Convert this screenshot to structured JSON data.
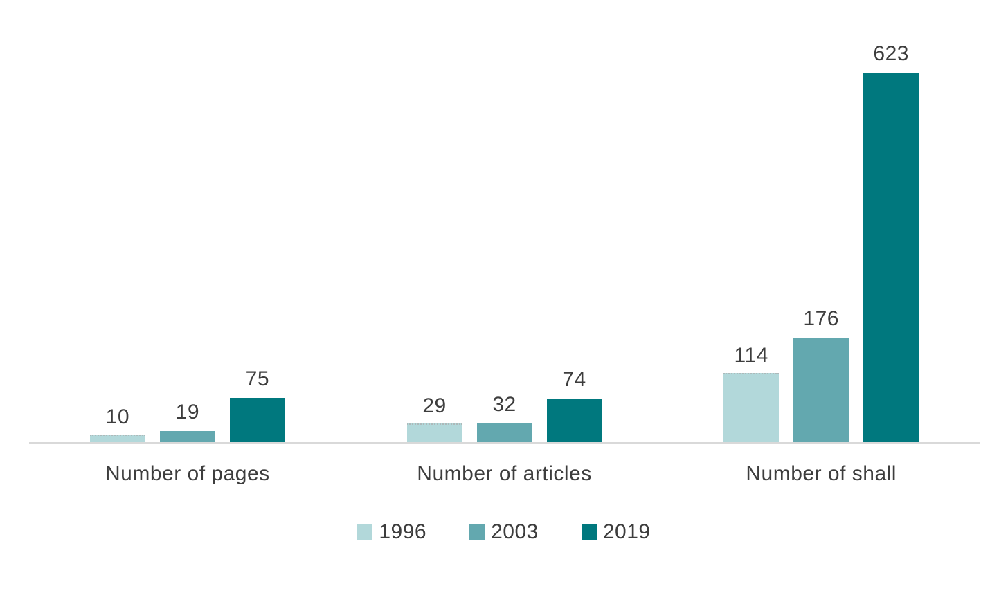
{
  "chart_data": {
    "type": "bar",
    "title": "",
    "xlabel": "",
    "ylabel": "",
    "categories": [
      "Number of pages",
      "Number of articles",
      "Number of shall"
    ],
    "series": [
      {
        "name": "1996",
        "color": "#b2d8da",
        "values": [
          10,
          29,
          114
        ]
      },
      {
        "name": "2003",
        "color": "#63a8af",
        "values": [
          19,
          32,
          176
        ]
      },
      {
        "name": "2019",
        "color": "#00787e",
        "values": [
          75,
          74,
          623
        ]
      }
    ],
    "ylim": [
      0,
      623
    ],
    "grid": false,
    "axis_line_color": "#d9d9d9",
    "label_color": "#3d3d3d",
    "legend_position": "bottom",
    "data_labels": true
  }
}
